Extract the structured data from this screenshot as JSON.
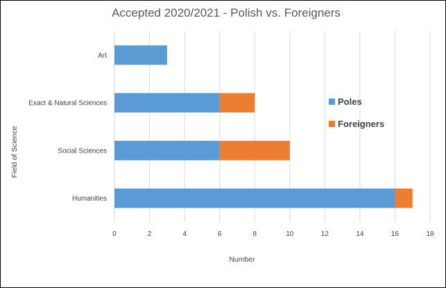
{
  "chart_data": {
    "type": "bar",
    "orientation": "horizontal",
    "stacked": true,
    "title": "Accepted 2020/2021 - Polish vs. Foreigners",
    "xlabel": "Number",
    "ylabel": "Field of Science",
    "categories": [
      "Art",
      "Exact & Natural Sciences",
      "Social Sciences",
      "Humanities"
    ],
    "series": [
      {
        "name": "Poles",
        "color": "#5b9bd5",
        "values": [
          3,
          6,
          6,
          16
        ]
      },
      {
        "name": "Foreigners",
        "color": "#ed7d31",
        "values": [
          0,
          2,
          4,
          1
        ]
      }
    ],
    "xlim": [
      0,
      18
    ],
    "xticks": [
      "0",
      "2",
      "4",
      "6",
      "8",
      "10",
      "12",
      "14",
      "16",
      "18"
    ],
    "grid": true,
    "legend_position": "right"
  }
}
